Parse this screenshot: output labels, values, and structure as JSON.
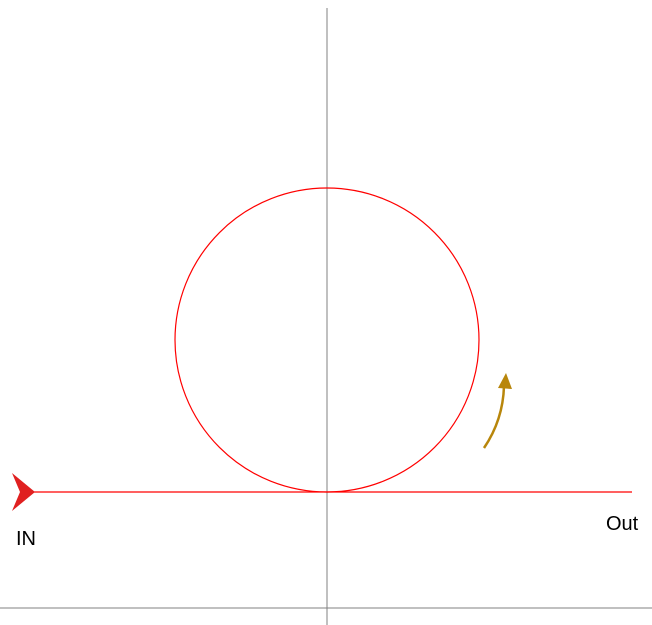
{
  "labels": {
    "in": "IN",
    "out": "Out"
  }
}
